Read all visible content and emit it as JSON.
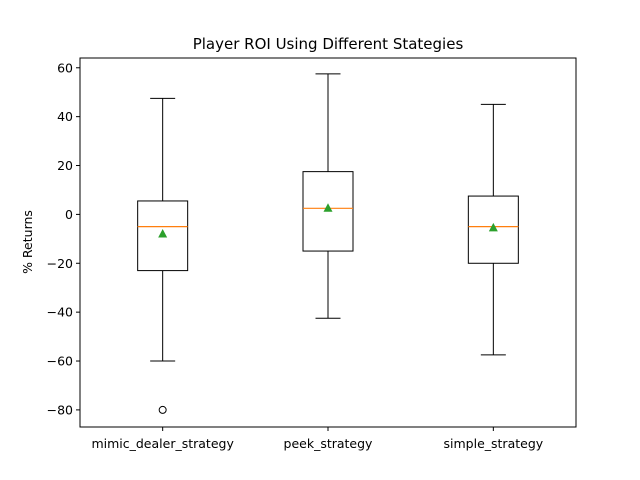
{
  "chart_data": {
    "type": "box",
    "title": "Player ROI Using Different Stategies",
    "xlabel": "",
    "ylabel": "% Returns",
    "ylim": [
      -87,
      64
    ],
    "yticks": [
      -80,
      -60,
      -40,
      -20,
      0,
      20,
      40,
      60
    ],
    "ytick_labels": [
      "−80",
      "−60",
      "−40",
      "−20",
      "0",
      "20",
      "40",
      "60"
    ],
    "grid": false,
    "box_color": "#000000",
    "median_color": "#ff7f0e",
    "mean_color": "#2ca02c",
    "categories": [
      "mimic_dealer_strategy",
      "peek_strategy",
      "simple_strategy"
    ],
    "boxes": [
      {
        "category": "mimic_dealer_strategy",
        "whisker_low": -60,
        "q1": -23,
        "median": -5,
        "q3": 5.5,
        "whisker_high": 47.5,
        "mean": -8,
        "outliers": [
          -80
        ]
      },
      {
        "category": "peek_strategy",
        "whisker_low": -42.5,
        "q1": -15,
        "median": 2.5,
        "q3": 17.5,
        "whisker_high": 57.5,
        "mean": 2.5,
        "outliers": []
      },
      {
        "category": "simple_strategy",
        "whisker_low": -57.5,
        "q1": -20,
        "median": -5,
        "q3": 7.5,
        "whisker_high": 45,
        "mean": -5.5,
        "outliers": []
      }
    ]
  }
}
